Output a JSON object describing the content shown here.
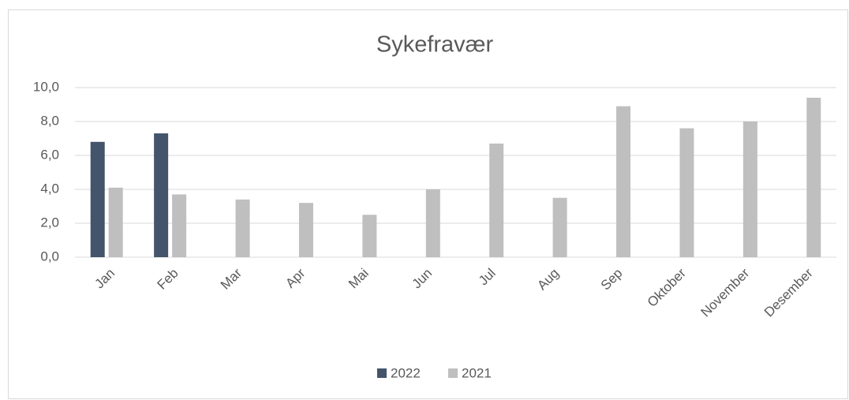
{
  "chart_data": {
    "type": "bar",
    "title": "Sykefravær",
    "categories": [
      "Jan",
      "Feb",
      "Mar",
      "Apr",
      "Mai",
      "Jun",
      "Jul",
      "Aug",
      "Sep",
      "Oktober",
      "November",
      "Desember"
    ],
    "series": [
      {
        "name": "2022",
        "color": "#44546a",
        "values": [
          6.8,
          7.3,
          null,
          null,
          null,
          null,
          null,
          null,
          null,
          null,
          null,
          null
        ]
      },
      {
        "name": "2021",
        "color": "#bfbfbf",
        "values": [
          4.1,
          3.7,
          3.4,
          3.2,
          2.5,
          4.0,
          6.7,
          3.5,
          8.9,
          7.6,
          8.0,
          9.4
        ]
      }
    ],
    "ylim": [
      0,
      10
    ],
    "yticks": [
      {
        "value": 0,
        "label": "0,0"
      },
      {
        "value": 2,
        "label": "2,0"
      },
      {
        "value": 4,
        "label": "4,0"
      },
      {
        "value": 6,
        "label": "6,0"
      },
      {
        "value": 8,
        "label": "8,0"
      },
      {
        "value": 10,
        "label": "10,0"
      }
    ],
    "grid": true,
    "legend": "bottom"
  }
}
